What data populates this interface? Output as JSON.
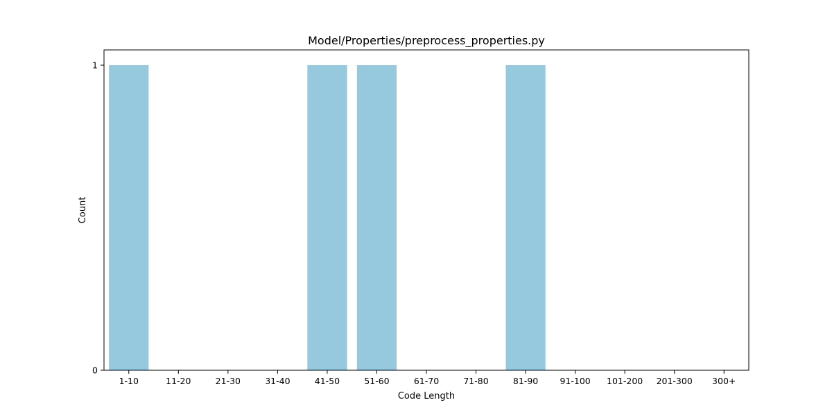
{
  "chart_data": {
    "type": "bar",
    "title": "Model/Properties/preprocess_properties.py",
    "xlabel": "Code Length",
    "ylabel": "Count",
    "categories": [
      "1-10",
      "11-20",
      "21-30",
      "31-40",
      "41-50",
      "51-60",
      "61-70",
      "71-80",
      "81-90",
      "91-100",
      "101-200",
      "201-300",
      "300+"
    ],
    "values": [
      1,
      0,
      0,
      0,
      1,
      1,
      0,
      0,
      1,
      0,
      0,
      0,
      0
    ],
    "ylim": [
      0,
      1.05
    ],
    "yticks": [
      0,
      1
    ],
    "ytick_labels": [
      "0",
      "1"
    ],
    "bar_color": "#96c9de",
    "grid": false,
    "legend": "none"
  }
}
